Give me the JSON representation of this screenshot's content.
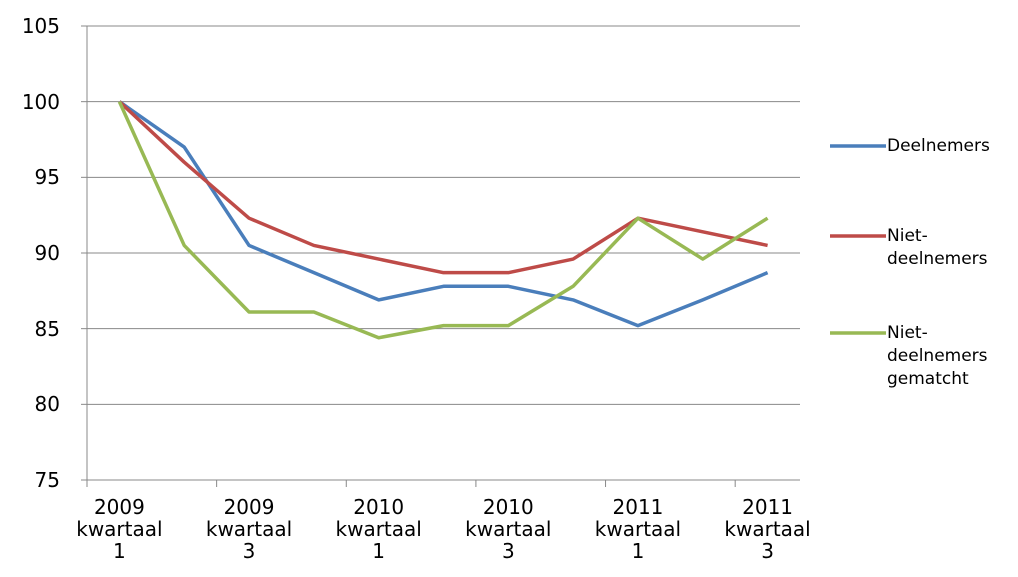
{
  "chart_data": {
    "type": "line",
    "categories": [
      "2009 kwartaal 1",
      null,
      "2009 kwartaal 3",
      null,
      "2010 kwartaal 1",
      null,
      "2010 kwartaal 3",
      null,
      "2011 kwartaal 1",
      null,
      "2011 kwartaal 3"
    ],
    "series": [
      {
        "name": "Deelnemers",
        "color": "#4a7ebb",
        "values": [
          100,
          97,
          90.5,
          88.7,
          86.9,
          87.8,
          87.8,
          86.9,
          85.2,
          86.9,
          88.7
        ]
      },
      {
        "name": "Niet-deelnemers",
        "color": "#be4b48",
        "values": [
          100,
          96,
          92.3,
          90.5,
          89.6,
          88.7,
          88.7,
          89.6,
          92.3,
          91.4,
          90.5
        ]
      },
      {
        "name": "Niet-deelnemers gematcht",
        "color": "#98b954",
        "values": [
          100,
          90.5,
          86.1,
          86.1,
          84.4,
          85.2,
          85.2,
          87.8,
          92.3,
          89.6,
          92.3
        ]
      }
    ],
    "ylim": [
      75,
      105
    ],
    "yticks": [
      75,
      80,
      85,
      90,
      95,
      100,
      105
    ],
    "grid": true,
    "legend": "right"
  }
}
